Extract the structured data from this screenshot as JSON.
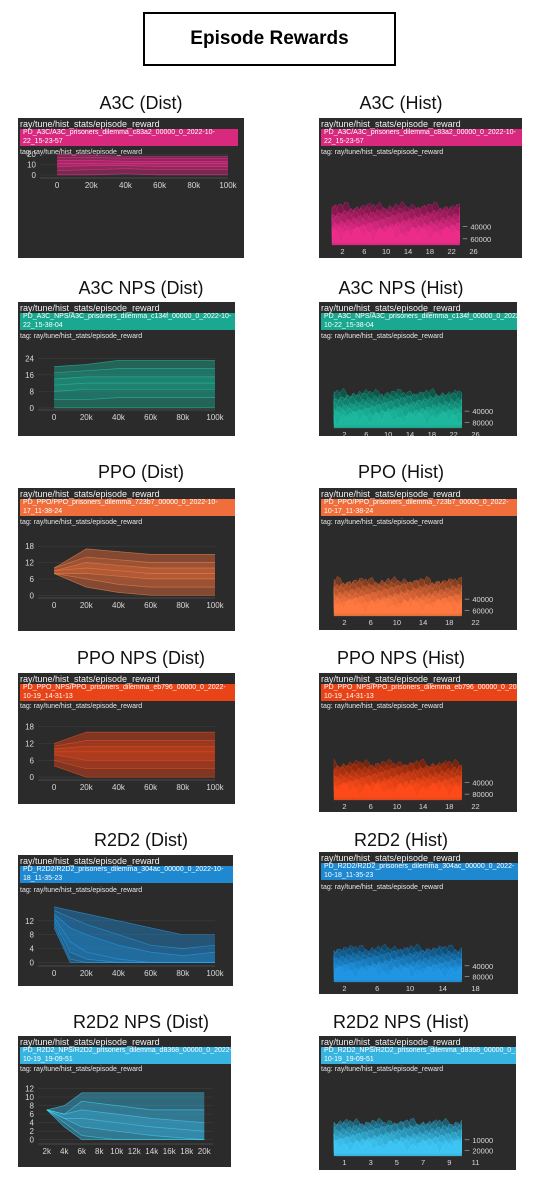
{
  "title": "Episode Rewards",
  "tag_prefix": "tag: ",
  "chart_data": [
    {
      "id": "a3c-dist",
      "type": "area",
      "caption": "A3C (Dist)",
      "chart_title": "ray/tune/hist_stats/episode_reward",
      "run": "PD_A3C/A3C_prisoners_dilemma_c83a2_00000_0_2022-10-22_15-23-57",
      "tag": "ray/tune/hist_stats/episode_reward",
      "color": "#d8297e",
      "xlim": [
        -10000,
        100000
      ],
      "ylim": [
        -3,
        24
      ],
      "x_ticks": [
        "0",
        "20k",
        "40k",
        "60k",
        "80k",
        "100k"
      ],
      "x_tick_values": [
        0,
        20000,
        40000,
        60000,
        80000,
        100000
      ],
      "y_ticks": [
        "0",
        "10",
        "20"
      ],
      "y_tick_values": [
        0,
        10,
        20
      ],
      "x": [
        0,
        20000,
        40000,
        60000,
        80000,
        100000
      ],
      "bands": [
        [
          0,
          0,
          1,
          0,
          0,
          0
        ],
        [
          4,
          5,
          6,
          5,
          5,
          5
        ],
        [
          8,
          9,
          9,
          8,
          8,
          8
        ],
        [
          11,
          11,
          11,
          11,
          11,
          11
        ],
        [
          14,
          14,
          13,
          13,
          13,
          13
        ],
        [
          17,
          17,
          16,
          16,
          16,
          16
        ],
        [
          20,
          19,
          18,
          18,
          18,
          18
        ]
      ]
    },
    {
      "id": "a3c-hist",
      "type": "histogram",
      "caption": "A3C (Hist)",
      "chart_title": "ray/tune/hist_stats/episode_reward",
      "run": "PD_A3C/A3C_prisoners_dilemma_c83a2_00000_0_2022-10-22_15-23-57",
      "tag": "ray/tune/hist_stats/episode_reward",
      "color": "#d8297e",
      "x_ticks": [
        "2",
        "6",
        "10",
        "14",
        "18",
        "22",
        "26"
      ],
      "x_tick_values": [
        2,
        6,
        10,
        14,
        18,
        22,
        26
      ],
      "y_ticks": [
        "40000",
        "60000"
      ],
      "y_tick_values": [
        40000,
        60000
      ]
    },
    {
      "id": "a3cnps-dist",
      "type": "area",
      "caption": "A3C NPS (Dist)",
      "chart_title": "ray/tune/hist_stats/episode_reward",
      "run": "PD_A3C_NPS/A3C_prisoners_dilemma_c134f_00000_0_2022-10-22_15-38-04",
      "tag": "ray/tune/hist_stats/episode_reward",
      "color": "#1aa890",
      "xlim": [
        -10000,
        100000
      ],
      "ylim": [
        -1,
        28
      ],
      "x_ticks": [
        "0",
        "20k",
        "40k",
        "60k",
        "80k",
        "100k"
      ],
      "x_tick_values": [
        0,
        20000,
        40000,
        60000,
        80000,
        100000
      ],
      "y_ticks": [
        "0",
        "8",
        "16",
        "24"
      ],
      "y_tick_values": [
        0,
        8,
        16,
        24
      ],
      "x": [
        0,
        20000,
        40000,
        60000,
        80000,
        100000
      ],
      "bands": [
        [
          0,
          0,
          0,
          0,
          0,
          0
        ],
        [
          4,
          4,
          5,
          5,
          5,
          5
        ],
        [
          8,
          9,
          9,
          9,
          9,
          9
        ],
        [
          11,
          12,
          12,
          12,
          12,
          12
        ],
        [
          14,
          15,
          15,
          15,
          15,
          15
        ],
        [
          17,
          18,
          19,
          19,
          19,
          19
        ],
        [
          20,
          21,
          23,
          23,
          23,
          23
        ]
      ]
    },
    {
      "id": "a3cnps-hist",
      "type": "histogram",
      "caption": "A3C NPS (Hist)",
      "chart_title": "ray/tune/hist_stats/episode_reward",
      "run": "PD_A3C_NPS/A3C_prisoners_dilemma_c134f_00000_0_2022-10-22_15-38-04",
      "tag": "ray/tune/hist_stats/episode_reward",
      "color": "#1aa890",
      "x_ticks": [
        "2",
        "6",
        "10",
        "14",
        "18",
        "22",
        "26"
      ],
      "x_tick_values": [
        2,
        6,
        10,
        14,
        18,
        22,
        26
      ],
      "y_ticks": [
        "40000",
        "80000"
      ],
      "y_tick_values": [
        40000,
        80000
      ]
    },
    {
      "id": "ppo-dist",
      "type": "area",
      "caption": "PPO (Dist)",
      "chart_title": "ray/tune/hist_stats/episode_reward",
      "run": "PD_PPO/PPO_prisoners_dilemma_723b7_00000_0_2022-10-17_11-38-24",
      "tag": "ray/tune/hist_stats/episode_reward",
      "color": "#ef6e3b",
      "xlim": [
        -10000,
        100000
      ],
      "ylim": [
        -1,
        21
      ],
      "x_ticks": [
        "0",
        "20k",
        "40k",
        "60k",
        "80k",
        "100k"
      ],
      "x_tick_values": [
        0,
        20000,
        40000,
        60000,
        80000,
        100000
      ],
      "y_ticks": [
        "0",
        "6",
        "12",
        "18"
      ],
      "y_tick_values": [
        0,
        6,
        12,
        18
      ],
      "x": [
        0,
        20000,
        40000,
        60000,
        80000,
        100000
      ],
      "bands": [
        [
          8,
          3,
          1,
          0,
          0,
          0
        ],
        [
          8,
          6,
          4,
          3,
          3,
          3
        ],
        [
          8,
          8,
          7,
          6,
          6,
          6
        ],
        [
          9,
          10,
          9,
          8,
          8,
          8
        ],
        [
          9,
          12,
          11,
          10,
          10,
          10
        ],
        [
          10,
          14,
          13,
          12,
          12,
          12
        ],
        [
          10,
          17,
          16,
          15,
          15,
          15
        ]
      ]
    },
    {
      "id": "ppo-hist",
      "type": "histogram",
      "caption": "PPO (Hist)",
      "chart_title": "ray/tune/hist_stats/episode_reward",
      "run": "PD_PPO/PPO_prisoners_dilemma_723b7_00000_0_2022-10-17_11-38-24",
      "tag": "ray/tune/hist_stats/episode_reward",
      "color": "#ef6e3b",
      "x_ticks": [
        "2",
        "6",
        "10",
        "14",
        "18",
        "22"
      ],
      "x_tick_values": [
        2,
        6,
        10,
        14,
        18,
        22
      ],
      "y_ticks": [
        "40000",
        "60000"
      ],
      "y_tick_values": [
        40000,
        60000
      ]
    },
    {
      "id": "pponps-dist",
      "type": "area",
      "caption": "PPO NPS (Dist)",
      "chart_title": "ray/tune/hist_stats/episode_reward",
      "run": "PD_PPO_NPS/PPO_prisoners_dilemma_eb796_00000_0_2022-10-19_14-31-13",
      "tag": "ray/tune/hist_stats/episode_reward",
      "color": "#e84418",
      "xlim": [
        -10000,
        100000
      ],
      "ylim": [
        -1,
        21
      ],
      "x_ticks": [
        "0",
        "20k",
        "40k",
        "60k",
        "80k",
        "100k"
      ],
      "x_tick_values": [
        0,
        20000,
        40000,
        60000,
        80000,
        100000
      ],
      "y_ticks": [
        "0",
        "6",
        "12",
        "18"
      ],
      "y_tick_values": [
        0,
        6,
        12,
        18
      ],
      "x": [
        0,
        20000,
        40000,
        60000,
        80000,
        100000
      ],
      "bands": [
        [
          4,
          0,
          0,
          0,
          0,
          0
        ],
        [
          6,
          3,
          3,
          3,
          3,
          3
        ],
        [
          8,
          6,
          6,
          6,
          6,
          6
        ],
        [
          9,
          9,
          9,
          9,
          9,
          9
        ],
        [
          10,
          11,
          11,
          11,
          11,
          11
        ],
        [
          11,
          13,
          13,
          13,
          13,
          13
        ],
        [
          12,
          16,
          16,
          16,
          16,
          16
        ]
      ]
    },
    {
      "id": "pponps-hist",
      "type": "histogram",
      "caption": "PPO NPS (Hist)",
      "chart_title": "ray/tune/hist_stats/episode_reward",
      "run": "PD_PPO_NPS/PPO_prisoners_dilemma_eb796_00000_0_2022-10-19_14-31-13",
      "tag": "ray/tune/hist_stats/episode_reward",
      "color": "#e84418",
      "x_ticks": [
        "2",
        "6",
        "10",
        "14",
        "18",
        "22"
      ],
      "x_tick_values": [
        2,
        6,
        10,
        14,
        18,
        22
      ],
      "y_ticks": [
        "40000",
        "80000"
      ],
      "y_tick_values": [
        40000,
        80000
      ]
    },
    {
      "id": "r2d2-dist",
      "type": "area",
      "caption": "R2D2 (Dist)",
      "chart_title": "ray/tune/hist_stats/episode_reward",
      "run": "PD_R2D2/R2D2_prisoners_dilemma_304ac_00000_0_2022-10-18_11-35-23",
      "tag": "ray/tune/hist_stats/episode_reward",
      "color": "#1e88d0",
      "xlim": [
        -10000,
        100000
      ],
      "ylim": [
        -1,
        18
      ],
      "x_ticks": [
        "0",
        "20k",
        "40k",
        "60k",
        "80k",
        "100k"
      ],
      "x_tick_values": [
        0,
        20000,
        40000,
        60000,
        80000,
        100000
      ],
      "y_ticks": [
        "0",
        "4",
        "8",
        "12"
      ],
      "y_tick_values": [
        0,
        4,
        8,
        12
      ],
      "x": [
        0,
        10000,
        20000,
        40000,
        60000,
        80000,
        100000
      ],
      "bands": [
        [
          10,
          0,
          0,
          0,
          0,
          0,
          0
        ],
        [
          11,
          1,
          0,
          0,
          0,
          0,
          0
        ],
        [
          12,
          3,
          1,
          0,
          0,
          0,
          0
        ],
        [
          13,
          6,
          3,
          1,
          0,
          0,
          0
        ],
        [
          14,
          10,
          8,
          5,
          3,
          2,
          3
        ],
        [
          15,
          13,
          11,
          8,
          5,
          4,
          5
        ],
        [
          16,
          15,
          14,
          12,
          10,
          8,
          8
        ]
      ]
    },
    {
      "id": "r2d2-hist",
      "type": "histogram",
      "caption": "R2D2 (Hist)",
      "chart_title": "ray/tune/hist_stats/episode_reward",
      "run": "PD_R2D2/R2D2_prisoners_dilemma_304ac_00000_0_2022-10-18_11-35-23",
      "tag": "ray/tune/hist_stats/episode_reward",
      "color": "#1e88d0",
      "x_ticks": [
        "2",
        "6",
        "10",
        "14",
        "18"
      ],
      "x_tick_values": [
        2,
        6,
        10,
        14,
        18
      ],
      "y_ticks": [
        "40000",
        "80000"
      ],
      "y_tick_values": [
        40000,
        80000
      ]
    },
    {
      "id": "r2d2nps-dist",
      "type": "area",
      "caption": "R2D2 NPS (Dist)",
      "chart_title": "ray/tune/hist_stats/episode_reward",
      "run": "PD_R2D2_NPS/R2D2_prisoners_dilemma_d8368_00000_0_2022-10-19_19-09-51",
      "tag": "ray/tune/hist_stats/episode_reward",
      "color": "#38b4e0",
      "xlim": [
        1000,
        21000
      ],
      "ylim": [
        -1,
        14
      ],
      "x_ticks": [
        "2k",
        "4k",
        "6k",
        "8k",
        "10k",
        "12k",
        "14k",
        "16k",
        "18k",
        "20k"
      ],
      "x_tick_values": [
        2000,
        4000,
        6000,
        8000,
        10000,
        12000,
        14000,
        16000,
        18000,
        20000
      ],
      "y_ticks": [
        "0",
        "2",
        "4",
        "6",
        "8",
        "10",
        "12"
      ],
      "y_tick_values": [
        0,
        2,
        4,
        6,
        8,
        10,
        12
      ],
      "x": [
        2000,
        4000,
        6000,
        10000,
        14000,
        20000
      ],
      "bands": [
        [
          7,
          3,
          0,
          0,
          0,
          0
        ],
        [
          7,
          4,
          1,
          0,
          0,
          0
        ],
        [
          7,
          5,
          3,
          2,
          1,
          0
        ],
        [
          7,
          5,
          5,
          4,
          3,
          2
        ],
        [
          7,
          6,
          7,
          6,
          5,
          4
        ],
        [
          7,
          6,
          9,
          8,
          7,
          7
        ],
        [
          7,
          8,
          11,
          11,
          11,
          11
        ]
      ]
    },
    {
      "id": "r2d2nps-hist",
      "type": "histogram",
      "caption": "R2D2 NPS (Hist)",
      "chart_title": "ray/tune/hist_stats/episode_reward",
      "run": "PD_R2D2_NPS/R2D2_prisoners_dilemma_d8368_00000_0_2022-10-19_19-09-51",
      "tag": "ray/tune/hist_stats/episode_reward",
      "color": "#38b4e0",
      "x_ticks": [
        "1",
        "3",
        "5",
        "7",
        "9",
        "11"
      ],
      "x_tick_values": [
        1,
        3,
        5,
        7,
        9,
        11
      ],
      "y_ticks": [
        "10000",
        "20000"
      ],
      "y_tick_values": [
        10000,
        20000
      ]
    }
  ]
}
